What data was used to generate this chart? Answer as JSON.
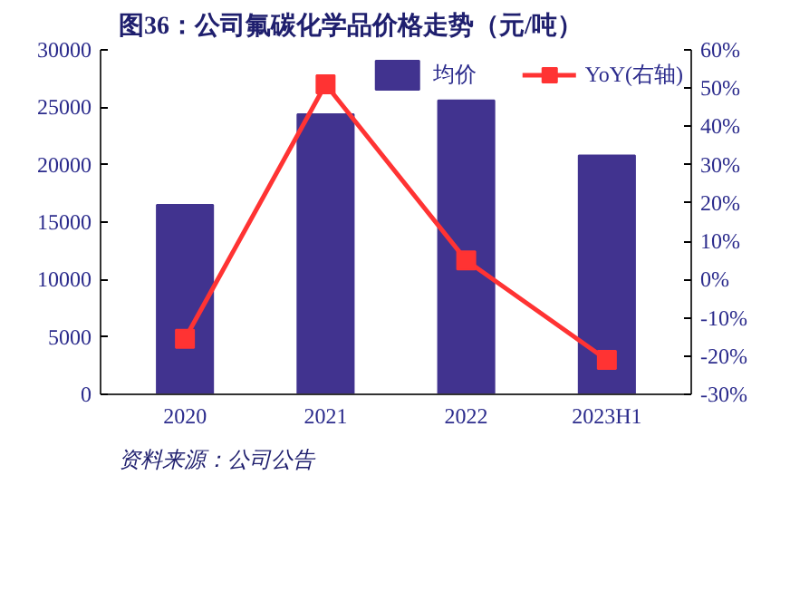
{
  "chart_data": {
    "type": "bar",
    "title": "图36：公司氟碳化学品价格走势（元/吨）",
    "categories": [
      "2020",
      "2021",
      "2022",
      "2023H1"
    ],
    "series": [
      {
        "name": "均价",
        "color": "#41338f",
        "values": [
          16500,
          24400,
          25600,
          20800
        ]
      },
      {
        "name": "YoY(右轴)",
        "type": "line",
        "axis": "y2",
        "color": "#ff3333",
        "values": [
          -15.5,
          51,
          5,
          -21
        ]
      }
    ],
    "ylim": [
      0,
      30000
    ],
    "yticks": [
      0,
      5000,
      10000,
      15000,
      20000,
      25000,
      30000
    ],
    "y2lim": [
      -30,
      60
    ],
    "y2ticks": [
      {
        "value": -30,
        "label": "-30%"
      },
      {
        "value": -20,
        "label": "-20%"
      },
      {
        "value": -10,
        "label": "-10%"
      },
      {
        "value": 0,
        "label": "0%"
      },
      {
        "value": 10,
        "label": "10%"
      },
      {
        "value": 20,
        "label": "20%"
      },
      {
        "value": 30,
        "label": "30%"
      },
      {
        "value": 40,
        "label": "40%"
      },
      {
        "value": 50,
        "label": "50%"
      },
      {
        "value": 60,
        "label": "60%"
      }
    ],
    "legend": "top",
    "marker": "square",
    "grid": false,
    "annotations": [
      "资料来源：公司公告"
    ]
  }
}
